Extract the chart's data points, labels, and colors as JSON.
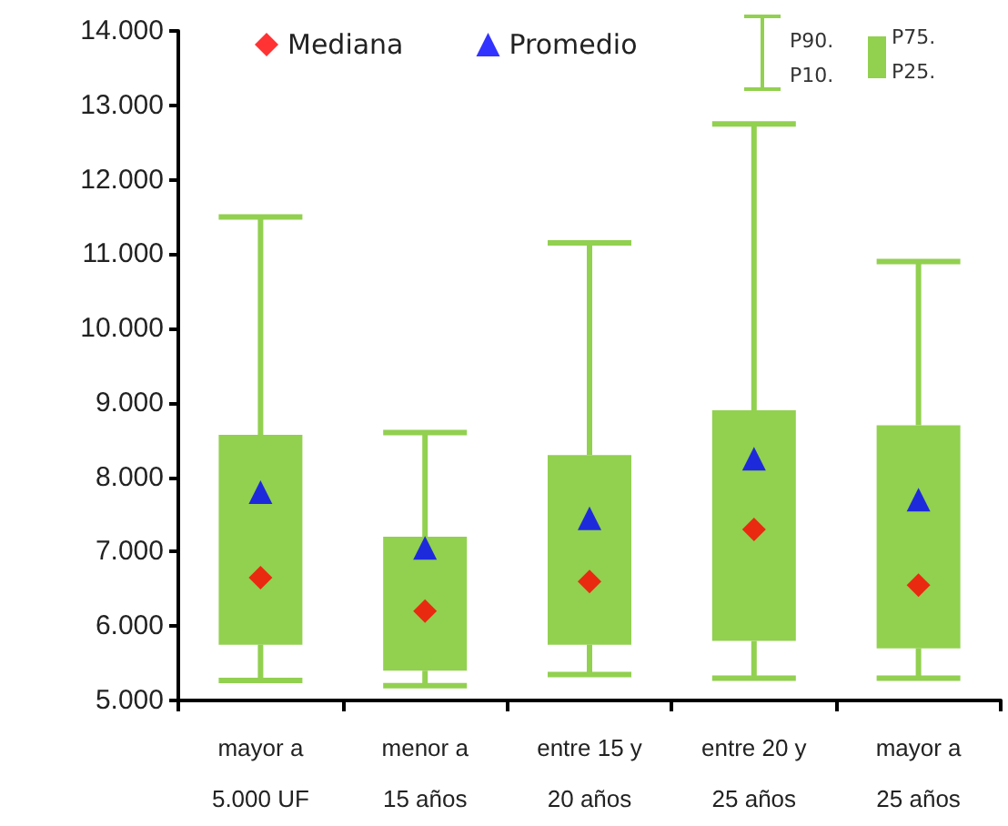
{
  "chart_data": {
    "type": "box",
    "categories": [
      "mayor a\n5.000 UF",
      "menor a\n15 años",
      "entre 15 y\n20 años",
      "entre 20 y\n25 años",
      "mayor a\n25 años"
    ],
    "ylim": [
      5000,
      14000
    ],
    "yticks": [
      {
        "value": 5000,
        "label": "5.000"
      },
      {
        "value": 6000,
        "label": "6.000"
      },
      {
        "value": 7000,
        "label": "7.000"
      },
      {
        "value": 8000,
        "label": "8.000"
      },
      {
        "value": 9000,
        "label": "9.000"
      },
      {
        "value": 10000,
        "label": "10.000"
      },
      {
        "value": 11000,
        "label": "11.000"
      },
      {
        "value": 12000,
        "label": "12.000"
      },
      {
        "value": 13000,
        "label": "13.000"
      },
      {
        "value": 14000,
        "label": "14.000"
      }
    ],
    "grid": false,
    "legend": "top",
    "annotations": [
      "P90.",
      "P10.",
      "P75.",
      "P25."
    ],
    "series": [
      {
        "color": "#92d050",
        "boxes": [
          {
            "low": 5270,
            "q1": 5750,
            "q3": 8570,
            "high": 11500
          },
          {
            "low": 5200,
            "q1": 5400,
            "q3": 7200,
            "high": 8600
          },
          {
            "low": 5350,
            "q1": 5750,
            "q3": 8300,
            "high": 11150
          },
          {
            "low": 5300,
            "q1": 5800,
            "q3": 8900,
            "high": 12750
          },
          {
            "low": 5300,
            "q1": 5700,
            "q3": 8700,
            "high": 10900
          }
        ]
      },
      {
        "type": "scatter",
        "name": "Mediana",
        "color": "#ff0000",
        "marker": "diamond",
        "values": [
          6650,
          6200,
          6600,
          7300,
          6550
        ]
      },
      {
        "type": "scatter",
        "name": "Promedio",
        "color": "#0000ff",
        "marker": "triangle",
        "values": [
          7800,
          7050,
          7450,
          8250,
          7700
        ]
      }
    ]
  }
}
